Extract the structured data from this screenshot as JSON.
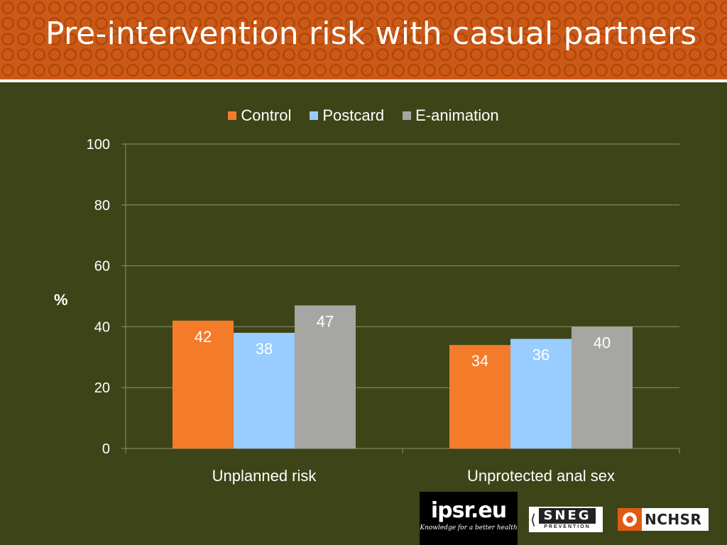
{
  "slide": {
    "title": "Pre-intervention risk with casual partners"
  },
  "chart_data": {
    "type": "bar",
    "title": "",
    "xlabel": "",
    "ylabel": "%",
    "ylim": [
      0,
      100
    ],
    "yticks": [
      0,
      20,
      40,
      60,
      80,
      100
    ],
    "grid": true,
    "legend_position": "top",
    "categories": [
      "Unplanned risk",
      "Unprotected anal sex"
    ],
    "series": [
      {
        "name": "Control",
        "values": [
          42,
          34
        ],
        "color": "#f47b29"
      },
      {
        "name": "Postcard",
        "values": [
          38,
          36
        ],
        "color": "#99ccff"
      },
      {
        "name": "E-animation",
        "values": [
          47,
          40
        ],
        "color": "#a6a6a2"
      }
    ]
  },
  "logos": {
    "ipsr": {
      "text": "ipsr.eu",
      "tagline": "Knowledge for a better health"
    },
    "sneg": {
      "text": "SNEG",
      "subtext": "PREVENTION"
    },
    "nchsr": {
      "text": "NCHSR",
      "mark_color": "#e05a14"
    }
  }
}
